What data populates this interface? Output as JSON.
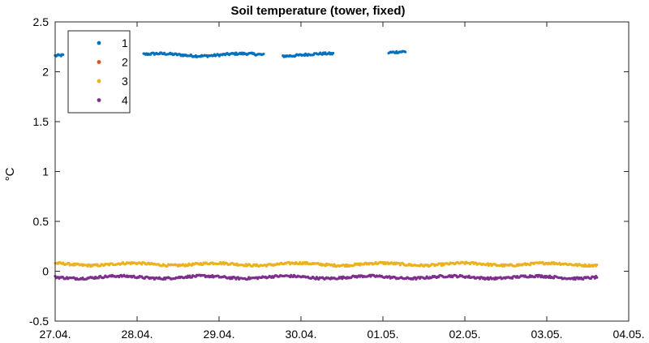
{
  "chart_data": {
    "type": "scatter",
    "title": "Soil temperature (tower, fixed)",
    "xlabel": "",
    "ylabel": "°C",
    "xlim": [
      "27.04.",
      "04.05."
    ],
    "ylim": [
      -0.5,
      2.5
    ],
    "x_ticks": [
      "27.04.",
      "28.04.",
      "29.04.",
      "30.04.",
      "01.05.",
      "02.05.",
      "03.05.",
      "04.05."
    ],
    "y_ticks": [
      "-0.5",
      "0",
      "0.5",
      "1",
      "1.5",
      "2",
      "2.5"
    ],
    "y_tick_values": [
      -0.5,
      0,
      0.5,
      1,
      1.5,
      2,
      2.5
    ],
    "grid": false,
    "legend_position": "top-left",
    "series": [
      {
        "name": "1",
        "color": "#0072BD",
        "segments": [
          {
            "x_start": "27.04.",
            "x_end": "28.04.",
            "x_start_day": 0.0,
            "x_end_day": 0.1,
            "level": 2.16
          },
          {
            "x_start": "28.04.",
            "x_end": "29.04.",
            "x_start_day": 1.08,
            "x_end_day": 2.55,
            "level": 2.17
          },
          {
            "x_start": "29.04.",
            "x_end": "30.04.",
            "x_start_day": 2.78,
            "x_end_day": 3.4,
            "level": 2.17
          },
          {
            "x_start": "01.05.",
            "x_end": "01.05.",
            "x_start_day": 4.07,
            "x_end_day": 4.28,
            "level": 2.19
          }
        ]
      },
      {
        "name": "2",
        "color": "#D95319",
        "segments": []
      },
      {
        "name": "3",
        "color": "#EDB120",
        "segments": [
          {
            "x_start": "27.04.",
            "x_end": "03.05.",
            "x_start_day": 0.0,
            "x_end_day": 6.62,
            "level": 0.07
          }
        ]
      },
      {
        "name": "4",
        "color": "#7E2F8E",
        "segments": [
          {
            "x_start": "27.04.",
            "x_end": "03.05.",
            "x_start_day": 0.0,
            "x_end_day": 6.62,
            "level": -0.06
          }
        ]
      }
    ]
  }
}
